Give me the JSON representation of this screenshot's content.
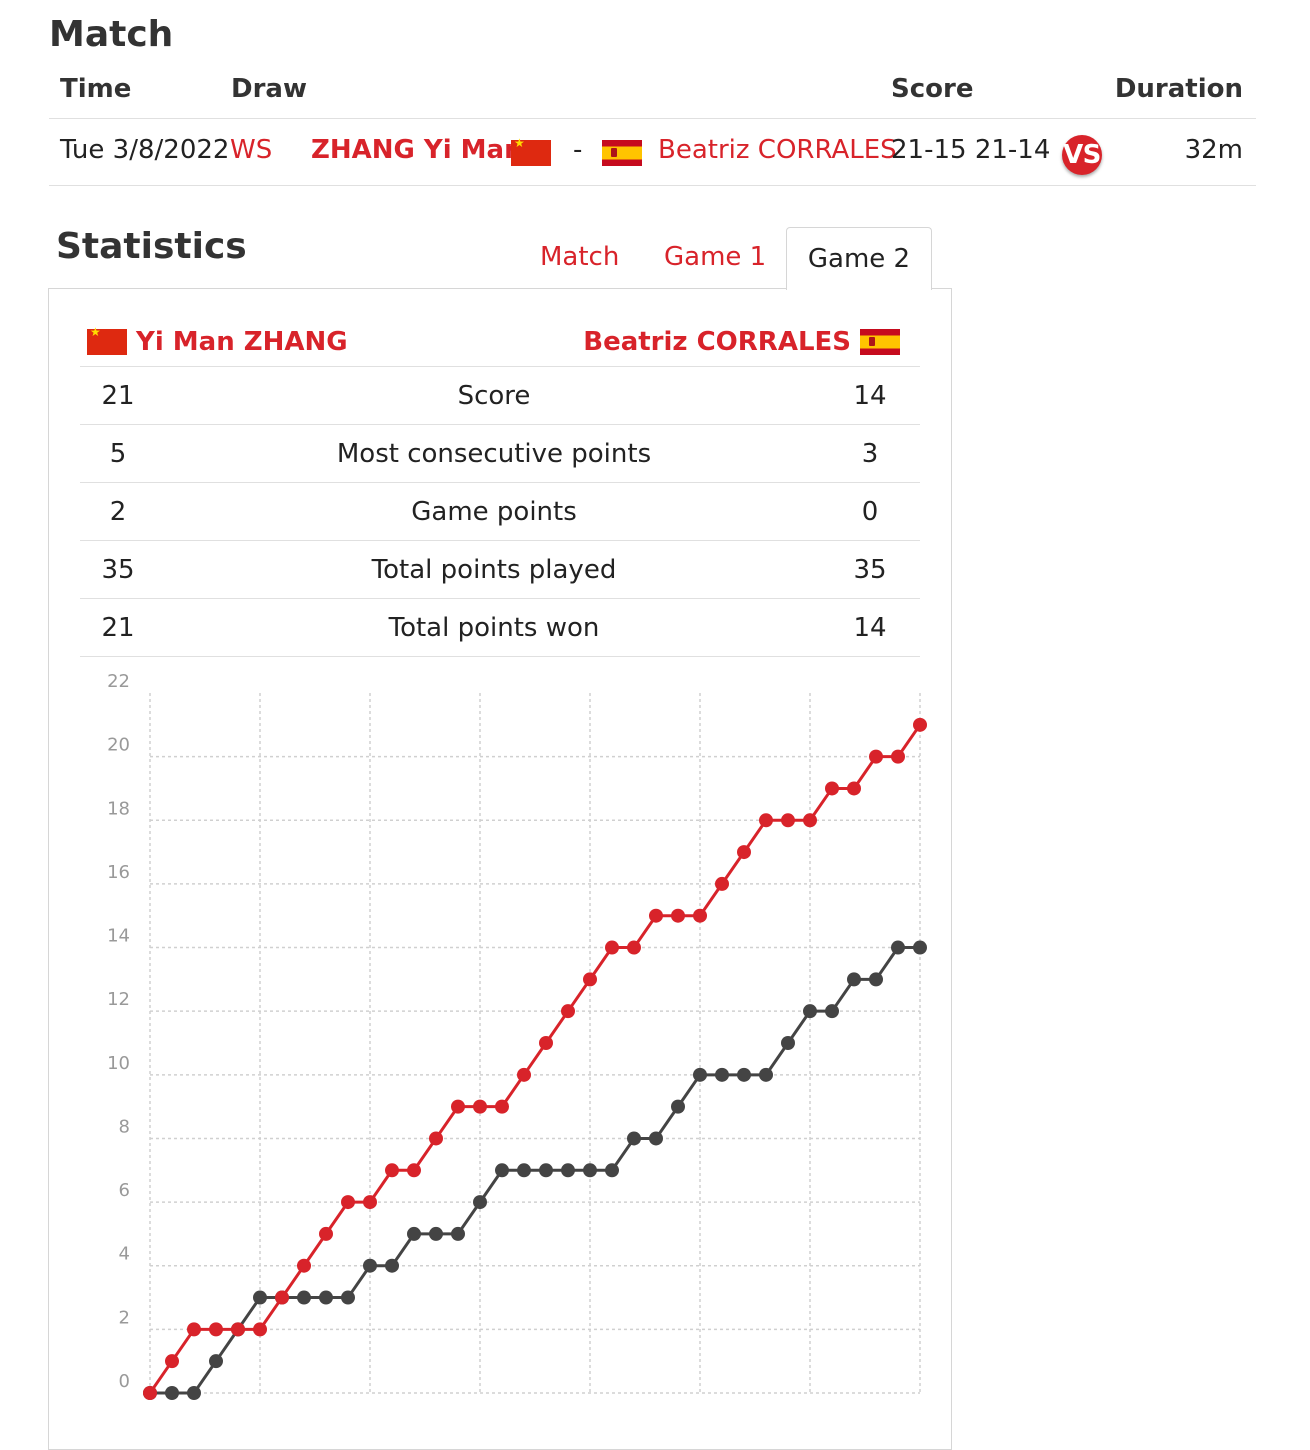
{
  "match": {
    "title": "Match",
    "headers": {
      "time": "Time",
      "draw": "Draw",
      "score": "Score",
      "duration": "Duration"
    },
    "row": {
      "time": "Tue 3/8/2022",
      "draw": "WS",
      "player1": "ZHANG Yi Man",
      "separator": "-",
      "player2": "Beatriz CORRALES",
      "score": "21-15 21-14",
      "vs": "VS",
      "duration": "32m"
    }
  },
  "statistics": {
    "title": "Statistics",
    "tabs": [
      "Match",
      "Game 1",
      "Game 2"
    ],
    "active_tab": "Game 2",
    "player_left": "Yi Man ZHANG",
    "player_right": "Beatriz CORRALES",
    "rows": [
      {
        "left": "21",
        "label": "Score",
        "right": "14"
      },
      {
        "left": "5",
        "label": "Most consecutive points",
        "right": "3"
      },
      {
        "left": "2",
        "label": "Game points",
        "right": "0"
      },
      {
        "left": "35",
        "label": "Total points played",
        "right": "35"
      },
      {
        "left": "21",
        "label": "Total points won",
        "right": "14"
      }
    ]
  },
  "colors": {
    "accent": "#d8232a",
    "series1": "#d8232a",
    "series2": "#444444",
    "grid": "#d0d0d0"
  },
  "chart_data": {
    "type": "line",
    "title": "",
    "xlabel": "",
    "ylabel": "",
    "ylim": [
      0,
      22
    ],
    "yticks": [
      0,
      2,
      4,
      6,
      8,
      10,
      12,
      14,
      16,
      18,
      20,
      22
    ],
    "x": [
      0,
      1,
      2,
      3,
      4,
      5,
      6,
      7,
      8,
      9,
      10,
      11,
      12,
      13,
      14,
      15,
      16,
      17,
      18,
      19,
      20,
      21,
      22,
      23,
      24,
      25,
      26,
      27,
      28,
      29,
      30,
      31,
      32,
      33,
      34,
      35
    ],
    "grid": true,
    "series": [
      {
        "values": [
          0,
          1,
          2,
          2,
          2,
          2,
          3,
          4,
          5,
          6,
          6,
          7,
          7,
          8,
          9,
          9,
          9,
          10,
          11,
          12,
          13,
          14,
          14,
          15,
          15,
          15,
          16,
          17,
          18,
          18,
          18,
          19,
          19,
          20,
          20,
          21
        ]
      },
      {
        "values": [
          0,
          0,
          0,
          1,
          2,
          3,
          3,
          3,
          3,
          3,
          4,
          4,
          5,
          5,
          5,
          6,
          7,
          7,
          7,
          7,
          7,
          7,
          8,
          8,
          9,
          10,
          10,
          10,
          10,
          11,
          12,
          12,
          13,
          13,
          14,
          14
        ]
      }
    ]
  }
}
